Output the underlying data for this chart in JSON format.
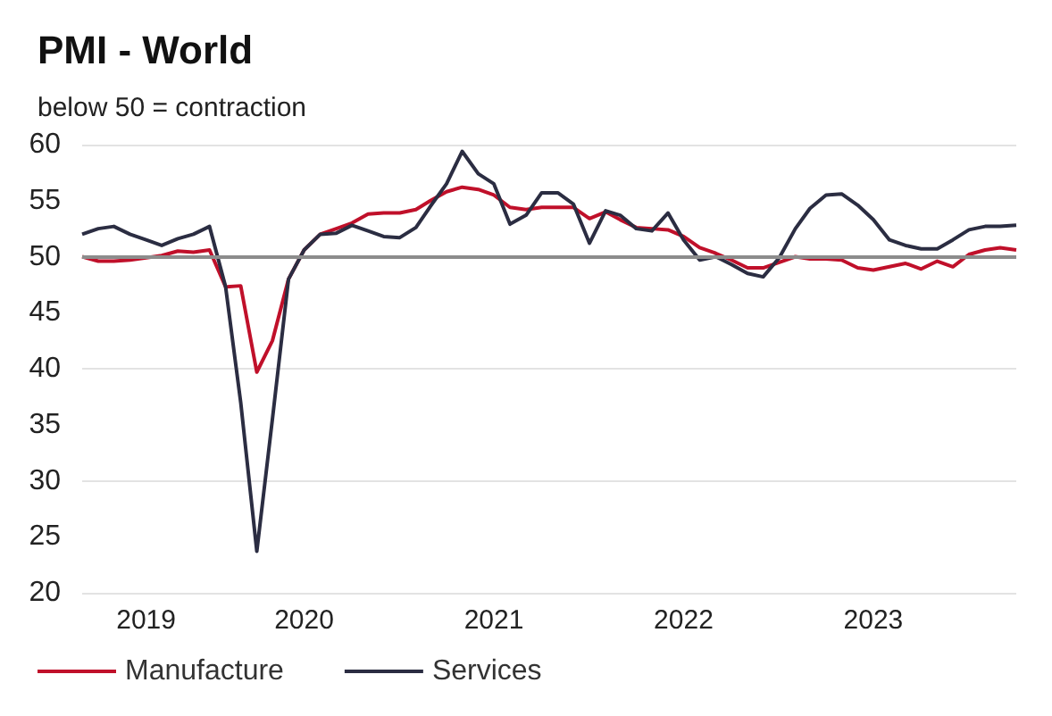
{
  "chart_data": {
    "type": "line",
    "title": "PMI - World",
    "subtitle": "below 50 = contraction",
    "x": [
      "2019-05",
      "2019-06",
      "2019-07",
      "2019-08",
      "2019-09",
      "2019-10",
      "2019-11",
      "2019-12",
      "2020-01",
      "2020-02",
      "2020-03",
      "2020-04",
      "2020-05",
      "2020-06",
      "2020-07",
      "2020-08",
      "2020-09",
      "2020-10",
      "2020-11",
      "2020-12",
      "2021-01",
      "2021-02",
      "2021-03",
      "2021-04",
      "2021-05",
      "2021-06",
      "2021-07",
      "2021-08",
      "2021-09",
      "2021-10",
      "2021-11",
      "2021-12",
      "2022-01",
      "2022-02",
      "2022-03",
      "2022-04",
      "2022-05",
      "2022-06",
      "2022-07",
      "2022-08",
      "2022-09",
      "2022-10",
      "2022-11",
      "2022-12",
      "2023-01",
      "2023-02",
      "2023-03",
      "2023-04",
      "2023-05",
      "2023-06",
      "2023-07",
      "2023-08",
      "2023-09",
      "2023-10",
      "2023-11",
      "2023-12",
      "2024-01",
      "2024-02",
      "2024-03",
      "2024-04"
    ],
    "series": [
      {
        "name": "Manufacture",
        "color": "#c0102a",
        "values": [
          50.0,
          49.6,
          49.6,
          49.7,
          49.9,
          50.1,
          50.5,
          50.4,
          50.6,
          47.3,
          47.4,
          39.7,
          42.5,
          48.0,
          50.6,
          52.0,
          52.5,
          53.0,
          53.8,
          53.9,
          53.9,
          54.2,
          55.0,
          55.8,
          56.2,
          56.0,
          55.5,
          54.4,
          54.2,
          54.4,
          54.4,
          54.4,
          53.4,
          54.0,
          53.3,
          52.6,
          52.5,
          52.4,
          51.8,
          50.8,
          50.3,
          49.7,
          49.0,
          49.0,
          49.5,
          50.0,
          49.8,
          49.8,
          49.7,
          49.0,
          48.8,
          49.1,
          49.4,
          48.9,
          49.6,
          49.1,
          50.2,
          50.6,
          50.8,
          50.6
        ]
      },
      {
        "name": "Services",
        "color": "#2b2d42",
        "values": [
          52.0,
          52.5,
          52.7,
          52.0,
          51.5,
          51.0,
          51.6,
          52.0,
          52.7,
          47.3,
          37.0,
          23.7,
          35.5,
          48.0,
          50.6,
          52.0,
          52.1,
          52.8,
          52.3,
          51.8,
          51.7,
          52.6,
          54.5,
          56.5,
          59.4,
          57.4,
          56.5,
          52.9,
          53.7,
          55.7,
          55.7,
          54.7,
          51.2,
          54.1,
          53.7,
          52.5,
          52.3,
          53.9,
          51.5,
          49.7,
          50.0,
          49.3,
          48.5,
          48.2,
          49.9,
          52.5,
          54.3,
          55.5,
          55.6,
          54.6,
          53.3,
          51.5,
          51.0,
          50.7,
          50.7,
          51.5,
          52.4,
          52.7,
          52.7,
          52.8
        ]
      }
    ],
    "xlim": [
      "2019-05",
      "2024-04"
    ],
    "xticks": [
      {
        "value": "2019-09",
        "label": "2019"
      },
      {
        "value": "2020-07",
        "label": "2020"
      },
      {
        "value": "2021-07",
        "label": "2021"
      },
      {
        "value": "2022-07",
        "label": "2022"
      },
      {
        "value": "2023-07",
        "label": "2023"
      }
    ],
    "ylim": [
      20,
      60
    ],
    "yticks": [
      20,
      25,
      30,
      35,
      40,
      45,
      50,
      55,
      60
    ],
    "ref_lines": [
      {
        "axis": "y",
        "value": 50,
        "color": "#8c8c8c"
      }
    ],
    "grid": "y",
    "legend": "bottom left",
    "marker": "none",
    "line_style": "solid"
  }
}
